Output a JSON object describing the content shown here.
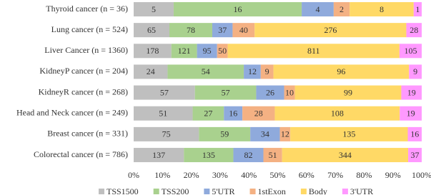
{
  "chart_data": {
    "type": "stacked_bar_100",
    "categories": [
      "Thyroid cancer (n = 36)",
      "Lung cancer (n = 524)",
      "Liver Cancer (n = 1360)",
      "KidneyP cancer  (n = 204)",
      "KidneyR cancer  (n = 268)",
      "Head and Neck cancer  (n = 249)",
      "Breast cancer  (n = 331)",
      "Colorectal cancer  (n = 786)"
    ],
    "series": [
      {
        "name": "TSS1500",
        "color": "#bfbfbf",
        "values": [
          5,
          65,
          178,
          24,
          57,
          51,
          75,
          137
        ]
      },
      {
        "name": "TSS200",
        "color": "#a9d18e",
        "values": [
          16,
          78,
          121,
          54,
          57,
          27,
          59,
          135
        ]
      },
      {
        "name": "5'UTR",
        "color": "#8faadc",
        "values": [
          4,
          37,
          95,
          12,
          26,
          16,
          34,
          82
        ]
      },
      {
        "name": "1stExon",
        "color": "#f4b183",
        "values": [
          2,
          40,
          50,
          9,
          10,
          28,
          12,
          51
        ]
      },
      {
        "name": "Body",
        "color": "#ffd966",
        "values": [
          8,
          276,
          811,
          96,
          99,
          108,
          135,
          344
        ]
      },
      {
        "name": "3'UTR",
        "color": "#ff99ff",
        "values": [
          1,
          28,
          105,
          9,
          19,
          19,
          16,
          37
        ]
      }
    ],
    "xlim": [
      0,
      100
    ],
    "xticks": [
      {
        "value": 0,
        "label": "0%"
      },
      {
        "value": 10,
        "label": "10%"
      },
      {
        "value": 20,
        "label": "20%"
      },
      {
        "value": 30,
        "label": "30%"
      },
      {
        "value": 40,
        "label": "40%"
      },
      {
        "value": 50,
        "label": "50%"
      },
      {
        "value": 60,
        "label": "60%"
      },
      {
        "value": 70,
        "label": "70%"
      },
      {
        "value": 80,
        "label": "80%"
      },
      {
        "value": 90,
        "label": "90%"
      },
      {
        "value": 100,
        "label": "100%"
      }
    ]
  }
}
